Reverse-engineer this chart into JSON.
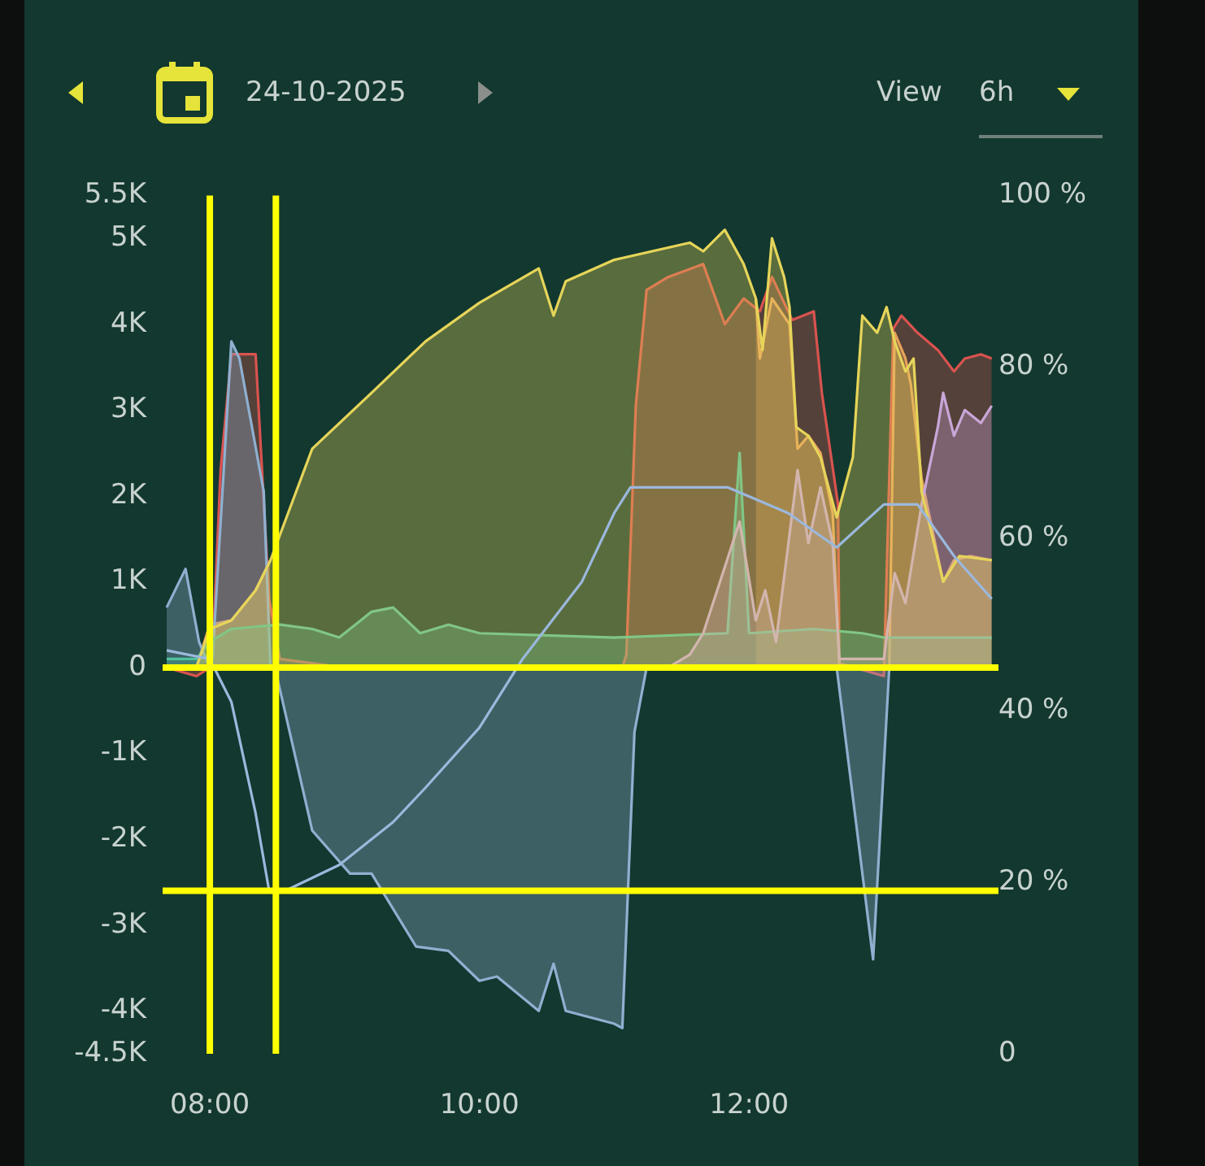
{
  "chart_data": {
    "type": "area",
    "subtitle": "24-10-2025",
    "annotations": [
      "View",
      "6h"
    ],
    "xlim": [
      7.65,
      13.85
    ],
    "xticks": [
      {
        "value": 8,
        "label": "08:00"
      },
      {
        "value": 10,
        "label": "10:00"
      },
      {
        "value": 12,
        "label": "12:00"
      }
    ],
    "ylim": [
      -4500,
      5500
    ],
    "yticks": [
      {
        "value": 5500,
        "label": "5.5K"
      },
      {
        "value": 5000,
        "label": "5K"
      },
      {
        "value": 4000,
        "label": "4K"
      },
      {
        "value": 3000,
        "label": "3K"
      },
      {
        "value": 2000,
        "label": "2K"
      },
      {
        "value": 1000,
        "label": "1K"
      },
      0,
      {
        "value": -1000,
        "label": "-1K"
      },
      {
        "value": -2000,
        "label": "-2K"
      },
      {
        "value": -3000,
        "label": "-3K"
      },
      {
        "value": -4000,
        "label": "-4K"
      },
      {
        "value": -4500,
        "label": "-4.5K"
      }
    ],
    "y2lim": [
      0,
      100
    ],
    "y2ticks": [
      0,
      {
        "value": 20,
        "label": "20 %"
      },
      {
        "value": 40,
        "label": "40 %"
      },
      {
        "value": 60,
        "label": "60 %"
      },
      {
        "value": 80,
        "label": "80 %"
      },
      {
        "value": 100,
        "label": "100 %"
      }
    ],
    "grid": false,
    "legend": false,
    "series": [
      {
        "type": "line",
        "axis": "y2",
        "color": "#9bb8dc",
        "x": [
          7.68,
          8.0,
          8.16,
          8.34,
          8.44,
          8.56,
          8.96,
          9.36,
          9.6,
          10.0,
          10.32,
          10.76,
          11.0,
          11.12,
          11.84,
          12.29,
          12.65,
          13.0,
          13.25,
          13.52,
          13.8
        ],
        "values": [
          47,
          46,
          41,
          28,
          19,
          19,
          22,
          27,
          31,
          38,
          46,
          55,
          63,
          66,
          66,
          63,
          59,
          64,
          64,
          58,
          53
        ]
      },
      {
        "color": "#c9a6d8",
        "x": [
          11.4,
          11.56,
          11.66,
          11.93,
          12.05,
          12.12,
          12.2,
          12.36,
          12.44,
          12.53,
          12.62,
          12.67,
          13.0,
          13.08,
          13.16,
          13.28,
          13.4,
          13.44,
          13.52,
          13.6,
          13.72,
          13.8
        ],
        "values": [
          0,
          150,
          400,
          1700,
          550,
          900,
          300,
          2300,
          1450,
          2100,
          1450,
          100,
          100,
          1100,
          750,
          1900,
          2800,
          3200,
          2700,
          3000,
          2850,
          3050
        ]
      },
      {
        "color": "#4fbf9c",
        "x": [
          7.68,
          7.9,
          8.0,
          8.16,
          8.52,
          8.76,
          8.96,
          9.2,
          9.36,
          9.56,
          9.77,
          10.0,
          11.0,
          11.84,
          11.93,
          12.0,
          12.48,
          12.84,
          13.0,
          13.8
        ],
        "values": [
          100,
          100,
          300,
          450,
          500,
          450,
          350,
          650,
          700,
          400,
          500,
          400,
          350,
          400,
          2500,
          400,
          450,
          400,
          350,
          350
        ]
      },
      {
        "color": "#8fb0d0",
        "x": [
          7.68,
          7.82,
          7.92,
          8.0,
          8.02,
          8.16,
          8.22,
          8.4,
          8.45,
          8.49,
          8.76,
          9.04,
          9.2,
          9.53,
          9.77,
          10.0,
          10.13,
          10.44,
          10.55,
          10.64,
          11.0,
          11.06,
          11.15,
          11.24,
          12.65,
          12.92,
          13.04,
          13.8
        ],
        "values": [
          700,
          1150,
          300,
          0,
          100,
          3800,
          3600,
          2050,
          0,
          -50,
          -1900,
          -2400,
          -2400,
          -3250,
          -3300,
          -3650,
          -3600,
          -4000,
          -3450,
          -4000,
          -4150,
          -4200,
          -750,
          0,
          0,
          -3400,
          0,
          0
        ]
      },
      {
        "color": "#e8a25a",
        "x": [
          7.9,
          8.0,
          8.16,
          8.34,
          8.45,
          9.0,
          12.05,
          12.08,
          12.17,
          12.3,
          12.36,
          12.44,
          12.53,
          12.62,
          12.67,
          13.04,
          13.08,
          13.16,
          13.2,
          13.28,
          13.44,
          13.52,
          13.64,
          13.8
        ],
        "values": [
          0,
          500,
          550,
          900,
          1250,
          null,
          4300,
          3600,
          4300,
          4000,
          2550,
          2700,
          2500,
          1800,
          0,
          0,
          3900,
          3600,
          3300,
          2200,
          1000,
          1250,
          1300,
          1250
        ]
      },
      {
        "color": "#d9534f",
        "x": [
          7.68,
          7.9,
          8.0,
          8.02,
          8.08,
          8.16,
          8.34,
          8.44,
          8.52,
          9.0,
          11.06,
          11.09,
          11.16,
          11.24,
          11.4,
          11.66,
          11.82,
          11.96,
          12.08,
          12.17,
          12.32,
          12.48,
          12.54,
          12.66,
          12.67,
          13.0,
          13.07,
          13.13,
          13.25,
          13.4,
          13.52,
          13.6,
          13.72,
          13.8
        ],
        "values": [
          0,
          -100,
          0,
          150,
          2300,
          3650,
          3650,
          800,
          100,
          0,
          0,
          150,
          3050,
          4400,
          4550,
          4700,
          4000,
          4300,
          4150,
          4550,
          4050,
          4150,
          3200,
          1900,
          50,
          -100,
          3950,
          4100,
          3900,
          3700,
          3450,
          3600,
          3650,
          3600
        ]
      },
      {
        "color": "#e6d55a",
        "x": [
          7.9,
          8.0,
          8.16,
          8.34,
          8.45,
          8.76,
          9.2,
          9.6,
          10.0,
          10.44,
          10.55,
          10.64,
          11.0,
          11.56,
          11.66,
          11.82,
          11.96,
          12.05,
          12.1,
          12.17,
          12.26,
          12.3,
          12.35,
          12.44,
          12.53,
          12.65,
          12.77,
          12.84,
          12.95,
          13.02,
          13.08,
          13.16,
          13.22,
          13.28,
          13.44,
          13.56,
          13.8
        ],
        "values": [
          0,
          450,
          550,
          900,
          1250,
          2550,
          3200,
          3800,
          4250,
          4650,
          4100,
          4500,
          4750,
          4950,
          4850,
          5100,
          4700,
          4300,
          3700,
          5000,
          4550,
          4200,
          2800,
          2700,
          2450,
          1750,
          2450,
          4100,
          3900,
          4200,
          3800,
          3450,
          3600,
          2050,
          1000,
          1300,
          1250
        ]
      }
    ],
    "ref_lines": [
      {
        "axis": "y",
        "value": 0,
        "color": "#ffff00"
      },
      {
        "axis": "x",
        "value": 8.0,
        "color": "#ffff00"
      },
      {
        "axis": "x",
        "value": 8.49,
        "color": "#ffff00"
      },
      {
        "axis": "y2",
        "value": 19,
        "color": "#ffff00"
      }
    ]
  }
}
